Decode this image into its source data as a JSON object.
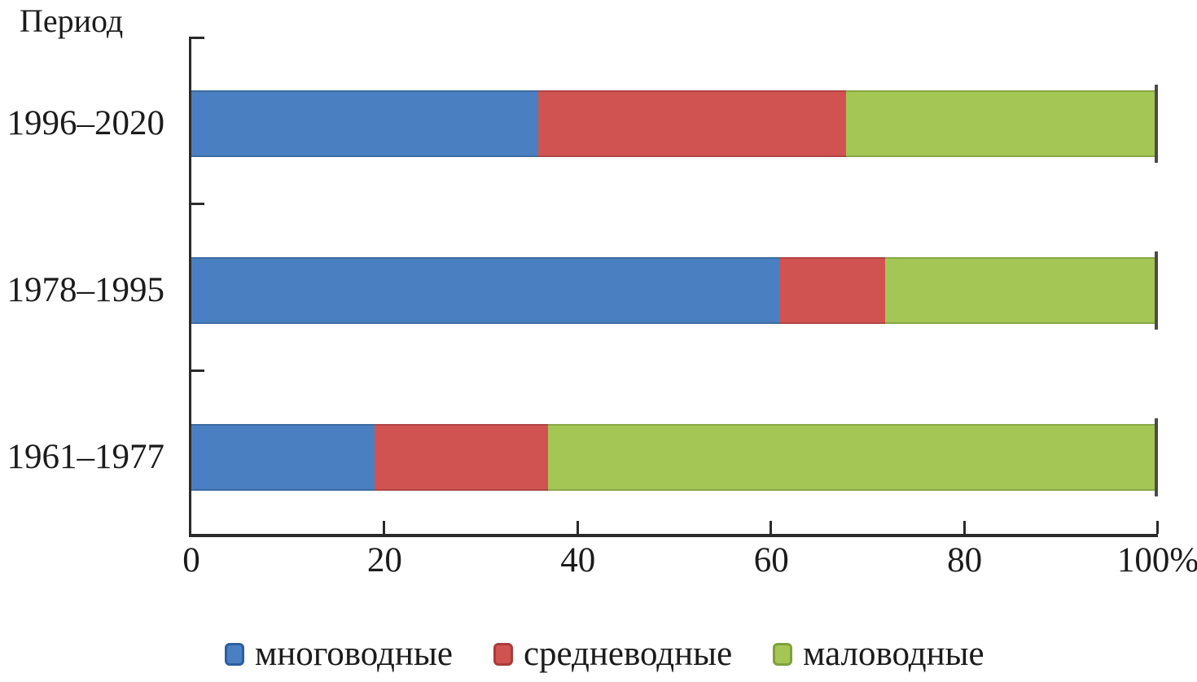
{
  "chart_data": {
    "type": "bar",
    "orientation": "horizontal",
    "stacked": true,
    "units": "%",
    "y_axis_title": "Период",
    "categories": [
      "1996–2020",
      "1978–1995",
      "1961–1977"
    ],
    "series": [
      {
        "name": "многоводные",
        "color": "#4a80c2",
        "edge_color": "#2b5f9e",
        "values": [
          36,
          61,
          19
        ]
      },
      {
        "name": "средневодные",
        "color": "#d15351",
        "edge_color": "#a93c3a",
        "values": [
          32,
          11,
          18
        ]
      },
      {
        "name": "маловодные",
        "color": "#a3c655",
        "edge_color": "#7fa03c",
        "values": [
          32,
          28,
          63
        ]
      }
    ],
    "x_axis": {
      "min": 0,
      "max": 100,
      "tick_labels": [
        "0",
        "20",
        "40",
        "60",
        "80",
        "100%"
      ]
    },
    "legend_position": "bottom",
    "grid": false,
    "axis_color": "#2a2a2a",
    "text_color": "#1b1b1b",
    "bar_end_line_color": "#4c4c46"
  }
}
